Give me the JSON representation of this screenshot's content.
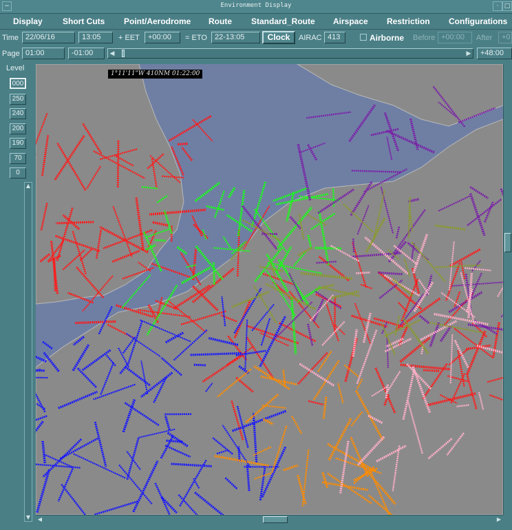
{
  "window": {
    "title": "Environment Display"
  },
  "menu": [
    "Display",
    "Short Cuts",
    "Point/Aerodrome",
    "Route",
    "Standard_Route",
    "Airspace",
    "Restriction",
    "Configurations"
  ],
  "time_row": {
    "time_label": "Time",
    "date": "22/06/16",
    "time": "13:05",
    "eet_label": "+ EET",
    "eet": "+00:00",
    "eto_label": "= ETO",
    "eto": "22-13:05",
    "clock_button": "Clock",
    "airac_label": "AIRAC",
    "airac": "413",
    "airborne_label": "Airborne",
    "before_label": "Before",
    "before": "+00:00",
    "after_label": "After",
    "after": "+0"
  },
  "page_row": {
    "page_label": "Page",
    "page_start": "01:00",
    "page_offset": "-01:00",
    "page_end": "+48:00"
  },
  "levels": {
    "title": "Level",
    "items": [
      "000",
      "250",
      "240",
      "200",
      "190",
      "70",
      "0"
    ],
    "selected": "000"
  },
  "map": {
    "coordinate_readout": "1°11'11\"W   410NM 01:22:00",
    "colors": {
      "sea": "#6f7fa4",
      "land": "#8a8a8a",
      "border": "#b9b9b9",
      "red": "#ff1a1a",
      "green": "#16ff16",
      "blue": "#1515ff",
      "orange": "#ff8c00",
      "purple": "#7a1fa8",
      "pink": "#ffb0c8",
      "olive": "#8a9a2a"
    }
  },
  "theme": {
    "window_bg": "#4a7f86",
    "text": "#ffffff"
  }
}
